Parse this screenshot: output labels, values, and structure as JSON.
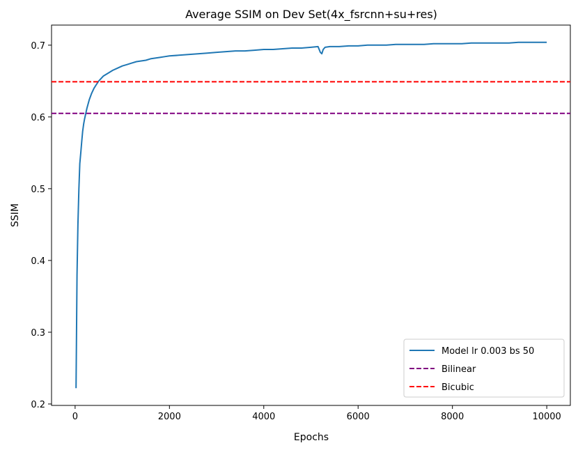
{
  "chart_data": {
    "type": "line",
    "title": "Average SSIM on Dev Set(4x_fsrcnn+su+res)",
    "xlabel": "Epochs",
    "ylabel": "SSIM",
    "xlim": [
      -500,
      10500
    ],
    "ylim": [
      0.198,
      0.728
    ],
    "xticks": [
      0,
      2000,
      4000,
      6000,
      8000,
      10000
    ],
    "yticks": [
      0.2,
      0.3,
      0.4,
      0.5,
      0.6,
      0.7
    ],
    "xtick_labels": [
      "0",
      "2000",
      "4000",
      "6000",
      "8000",
      "10000"
    ],
    "ytick_labels": [
      "0.2",
      "0.3",
      "0.4",
      "0.5",
      "0.6",
      "0.7"
    ],
    "grid": false,
    "legend": "bottom-right",
    "series": [
      {
        "name": "Model lr 0.003 bs 50",
        "style": "solid",
        "color": "#1f77b4",
        "x": [
          20,
          40,
          60,
          80,
          100,
          120,
          140,
          160,
          180,
          200,
          250,
          300,
          350,
          400,
          450,
          500,
          600,
          700,
          800,
          900,
          1000,
          1100,
          1200,
          1300,
          1400,
          1500,
          1600,
          1700,
          1800,
          1900,
          2000,
          2200,
          2400,
          2600,
          2800,
          3000,
          3200,
          3400,
          3600,
          3800,
          4000,
          4200,
          4400,
          4600,
          4800,
          5000,
          5150,
          5200,
          5230,
          5260,
          5300,
          5400,
          5600,
          5800,
          6000,
          6200,
          6400,
          6600,
          6800,
          7000,
          7200,
          7400,
          7600,
          7800,
          8000,
          8200,
          8400,
          8600,
          8800,
          9000,
          9200,
          9400,
          9600,
          9800,
          10000
        ],
        "y": [
          0.222,
          0.38,
          0.45,
          0.5,
          0.535,
          0.55,
          0.565,
          0.58,
          0.59,
          0.597,
          0.612,
          0.624,
          0.633,
          0.64,
          0.645,
          0.65,
          0.657,
          0.661,
          0.665,
          0.668,
          0.671,
          0.673,
          0.675,
          0.677,
          0.678,
          0.679,
          0.681,
          0.682,
          0.683,
          0.684,
          0.685,
          0.686,
          0.687,
          0.688,
          0.689,
          0.69,
          0.691,
          0.692,
          0.692,
          0.693,
          0.694,
          0.694,
          0.695,
          0.696,
          0.696,
          0.697,
          0.698,
          0.69,
          0.688,
          0.694,
          0.697,
          0.698,
          0.698,
          0.699,
          0.699,
          0.7,
          0.7,
          0.7,
          0.701,
          0.701,
          0.701,
          0.701,
          0.702,
          0.702,
          0.702,
          0.702,
          0.703,
          0.703,
          0.703,
          0.703,
          0.703,
          0.704,
          0.704,
          0.704,
          0.704
        ]
      },
      {
        "name": "Bilinear",
        "style": "dashed",
        "color": "#800080",
        "y_constant": 0.605
      },
      {
        "name": "Bicubic",
        "style": "dashed",
        "color": "#ff0000",
        "y_constant": 0.649
      }
    ]
  }
}
